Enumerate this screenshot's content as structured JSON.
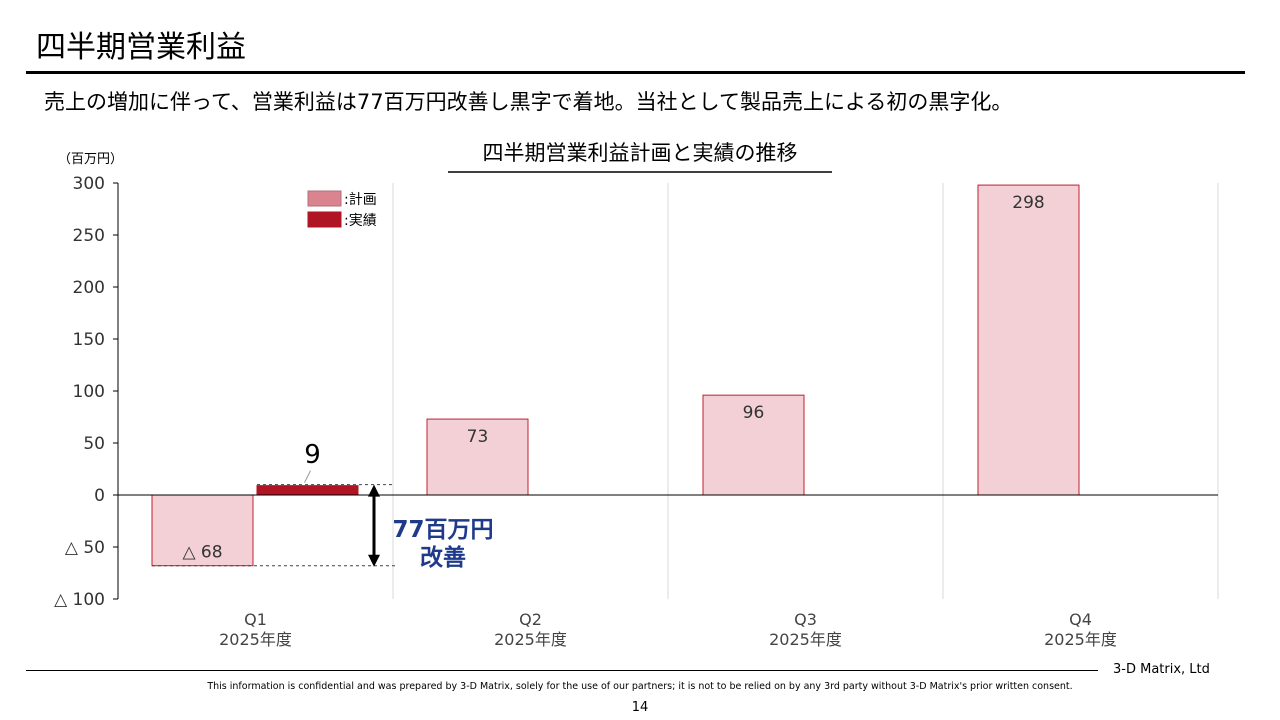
{
  "header": {
    "title": "四半期営業利益",
    "headline": "売上の増加に伴って、営業利益は77百万円改善し黒字で着地。当社として製品売上による初の黒字化。"
  },
  "chart_data": {
    "type": "bar",
    "title": "四半期営業利益計画と実績の推移",
    "unit_label": "（百万円）",
    "ylim": [
      -100,
      300
    ],
    "yticks": [
      {
        "value": 300,
        "label": "300"
      },
      {
        "value": 250,
        "label": "250"
      },
      {
        "value": 200,
        "label": "200"
      },
      {
        "value": 150,
        "label": "150"
      },
      {
        "value": 100,
        "label": "100"
      },
      {
        "value": 50,
        "label": "50"
      },
      {
        "value": 0,
        "label": "0"
      },
      {
        "value": -50,
        "label": "△ 50"
      },
      {
        "value": -100,
        "label": "△ 100"
      }
    ],
    "categories": [
      {
        "q": "Q1",
        "year": "2025年度"
      },
      {
        "q": "Q2",
        "year": "2025年度"
      },
      {
        "q": "Q3",
        "year": "2025年度"
      },
      {
        "q": "Q4",
        "year": "2025年度"
      }
    ],
    "series": [
      {
        "name": "計画",
        "legend_label": ":計画",
        "color": "#f2d0d5",
        "legend_color": "#d9848e",
        "stroke": "#c0202c",
        "values": [
          -68,
          73,
          96,
          298
        ],
        "labels": [
          "△ 68",
          "73",
          "96",
          "298"
        ]
      },
      {
        "name": "実績",
        "legend_label": ":実績",
        "color": "#b01523",
        "legend_color": "#b01523",
        "stroke": "#b01523",
        "values": [
          9,
          null,
          null,
          null
        ],
        "labels": [
          "9",
          "",
          "",
          ""
        ]
      }
    ],
    "annotation": {
      "line1": "77百万円",
      "line2": "改善",
      "color": "#1f3a8a"
    },
    "grid": "vertical separators",
    "legend_position": "top-left"
  },
  "footer": {
    "company": "3-D Matrix, Ltd",
    "disclaimer": "This information is confidential and was prepared by 3-D Matrix, solely for the use of our partners; it is not to be relied on by any 3rd party without 3-D Matrix's prior written consent.",
    "page": "14"
  }
}
